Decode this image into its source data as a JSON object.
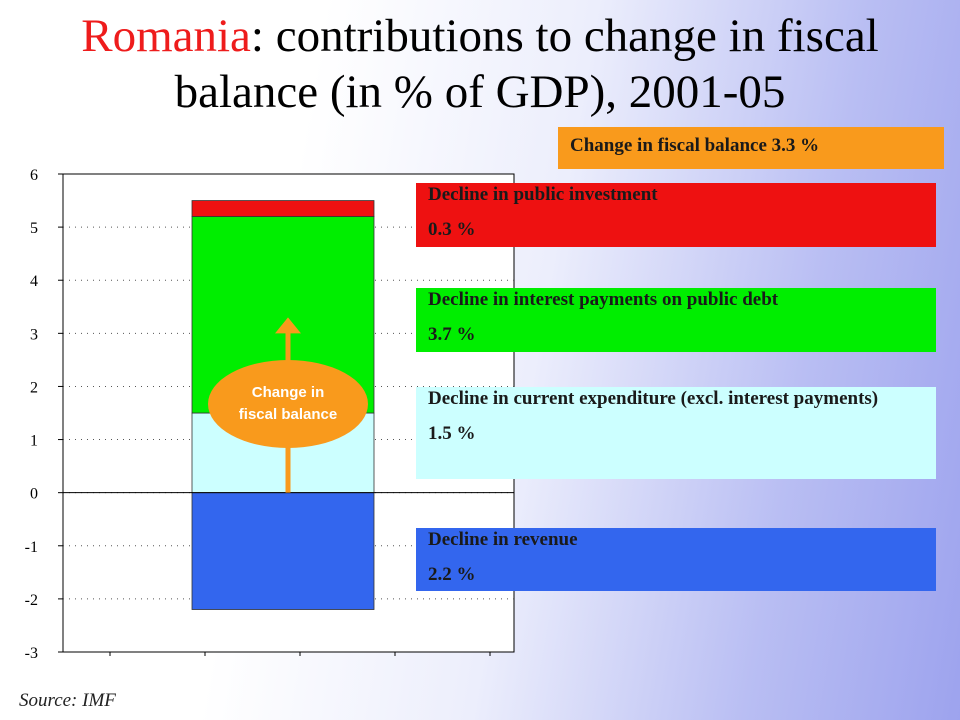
{
  "title": {
    "country": "Romania",
    "rest_line1": ": contributions to change in fiscal",
    "line2": "balance (in % of GDP), 2001-05"
  },
  "change_box": {
    "text": "Change in fiscal balance 3.3 %"
  },
  "labels": [
    {
      "title": "Decline in public investment",
      "value": "0.3 %",
      "color": "#ee1111"
    },
    {
      "title": "Decline in interest payments on public debt",
      "value": "3.7 %",
      "color": "#00ee00"
    },
    {
      "title": "Decline in current expenditure (excl. interest payments)",
      "value": "1.5 %",
      "color": "#ccffff"
    },
    {
      "title": "Decline in revenue",
      "value": "2.2 %",
      "color": "#3366ee"
    }
  ],
  "arrow": {
    "line1": "Change in",
    "line2": "fiscal balance",
    "color": "#f99a1c"
  },
  "source": "Source: IMF",
  "chart_data": {
    "type": "bar",
    "stacked": true,
    "categories": [
      ""
    ],
    "series": [
      {
        "name": "Decline in revenue",
        "values": [
          -2.2
        ],
        "color": "#3366ee"
      },
      {
        "name": "Decline in current expenditure (excl. interest payments)",
        "values": [
          1.5
        ],
        "color": "#ccffff"
      },
      {
        "name": "Decline in interest payments on public debt",
        "values": [
          3.7
        ],
        "color": "#00ee00"
      },
      {
        "name": "Decline in public investment",
        "values": [
          0.3
        ],
        "color": "#ee1111"
      }
    ],
    "net_change": 3.3,
    "ylim": [
      -3,
      6
    ],
    "yticks": [
      -3,
      -2,
      -1,
      0,
      1,
      2,
      3,
      4,
      5,
      6
    ],
    "grid": true,
    "title": "",
    "xlabel": "",
    "ylabel": ""
  }
}
